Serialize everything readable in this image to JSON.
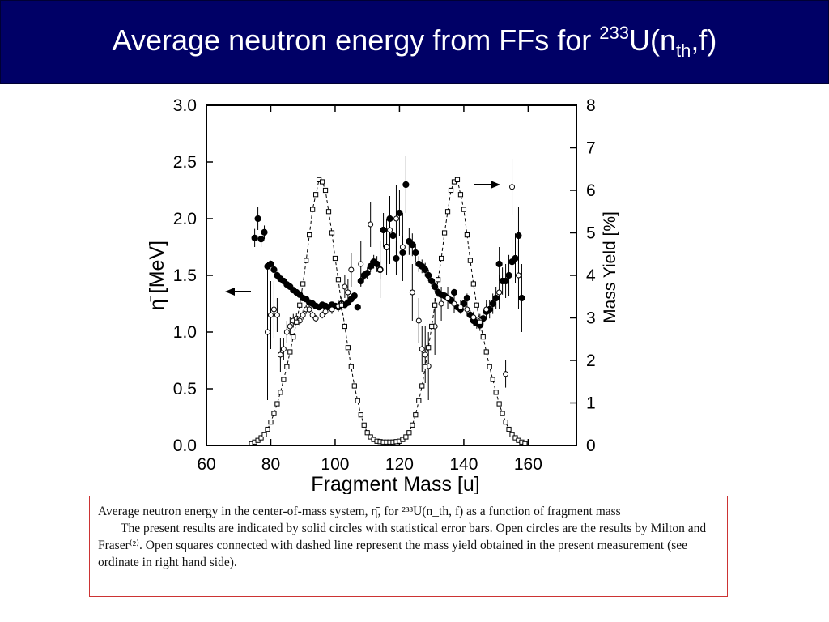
{
  "slide": {
    "title_main": "Average neutron energy from FFs for ",
    "title_sup": "233",
    "title_u": "U(n",
    "title_sub": "th",
    "title_end": ",f)"
  },
  "caption": {
    "line1": "Average neutron energy in the center-of-mass system, η̄, for ²³³U(n_th, f) as a function of fragment mass",
    "line2": "The present results are indicated by solid circles with statistical error bars. Open circles are the results by Milton and Fraser⁽²⁾. Open squares connected with dashed line represent the mass yield obtained in the present measurement (see ordinate in right hand side)."
  },
  "colors": {
    "title_bg": "#000066",
    "title_fg": "#ffffff",
    "caption_border": "#cc3333",
    "ink": "#000000"
  },
  "chart_data": {
    "type": "scatter",
    "xlabel": "Fragment  Mass  [u]",
    "ylabel": "η̄  [MeV]",
    "y2label": "Mass  Yield  [%]",
    "xlim": [
      60,
      175
    ],
    "ylim": [
      0,
      3.0
    ],
    "y2lim": [
      0,
      8
    ],
    "xticks": [
      "60",
      "80",
      "100",
      "120",
      "140",
      "160"
    ],
    "yticks": [
      "0.0",
      "0.5",
      "1.0",
      "1.5",
      "2.0",
      "2.5",
      "3.0"
    ],
    "y2ticks": [
      "0",
      "1",
      "2",
      "3",
      "4",
      "5",
      "6",
      "7",
      "8"
    ],
    "annotations": [
      "left arrow: η̄ uses left axis",
      "right arrow: mass yield uses right axis"
    ],
    "series": [
      {
        "marker": "solid-circle",
        "axis": "left",
        "points": [
          [
            75,
            1.83,
            0.08
          ],
          [
            76,
            2.0,
            0.1
          ],
          [
            77,
            1.82,
            0.07
          ],
          [
            78,
            1.88,
            0.06
          ],
          [
            79,
            1.58,
            0.04
          ],
          [
            80,
            1.6,
            0.03
          ],
          [
            81,
            1.55,
            0.03
          ],
          [
            82,
            1.5,
            0.03
          ],
          [
            83,
            1.47,
            0.03
          ],
          [
            84,
            1.45,
            0.02
          ],
          [
            85,
            1.42,
            0.02
          ],
          [
            86,
            1.4,
            0.02
          ],
          [
            87,
            1.37,
            0.02
          ],
          [
            88,
            1.35,
            0.02
          ],
          [
            89,
            1.33,
            0.02
          ],
          [
            90,
            1.3,
            0.02
          ],
          [
            91,
            1.29,
            0.02
          ],
          [
            92,
            1.26,
            0.02
          ],
          [
            93,
            1.25,
            0.02
          ],
          [
            94,
            1.23,
            0.02
          ],
          [
            95,
            1.22,
            0.02
          ],
          [
            96,
            1.24,
            0.02
          ],
          [
            97,
            1.23,
            0.02
          ],
          [
            98,
            1.22,
            0.02
          ],
          [
            99,
            1.24,
            0.02
          ],
          [
            100,
            1.23,
            0.02
          ],
          [
            101,
            1.22,
            0.02
          ],
          [
            102,
            1.25,
            0.02
          ],
          [
            103,
            1.24,
            0.02
          ],
          [
            104,
            1.26,
            0.02
          ],
          [
            105,
            1.29,
            0.03
          ],
          [
            106,
            1.32,
            0.03
          ],
          [
            107,
            1.22,
            0.03
          ],
          [
            108,
            1.45,
            0.04
          ],
          [
            109,
            1.5,
            0.04
          ],
          [
            110,
            1.52,
            0.05
          ],
          [
            111,
            1.58,
            0.05
          ],
          [
            112,
            1.62,
            0.06
          ],
          [
            113,
            1.6,
            0.07
          ],
          [
            114,
            1.55,
            0.08
          ],
          [
            115,
            1.9,
            0.15
          ],
          [
            116,
            1.75,
            0.15
          ],
          [
            117,
            2.0,
            0.2
          ],
          [
            118,
            1.85,
            0.2
          ],
          [
            119,
            1.65,
            0.15
          ],
          [
            120,
            2.05,
            0.2
          ],
          [
            121,
            1.7,
            0.15
          ],
          [
            122,
            2.3,
            0.25
          ],
          [
            123,
            1.8,
            0.12
          ],
          [
            124,
            1.77,
            0.1
          ],
          [
            125,
            1.7,
            0.08
          ],
          [
            126,
            1.6,
            0.07
          ],
          [
            127,
            1.58,
            0.06
          ],
          [
            128,
            1.55,
            0.06
          ],
          [
            129,
            1.5,
            0.05
          ],
          [
            130,
            1.45,
            0.05
          ],
          [
            131,
            1.4,
            0.04
          ],
          [
            132,
            1.35,
            0.04
          ],
          [
            133,
            1.33,
            0.03
          ],
          [
            134,
            1.32,
            0.03
          ],
          [
            135,
            1.3,
            0.03
          ],
          [
            136,
            1.28,
            0.03
          ],
          [
            137,
            1.35,
            0.03
          ],
          [
            138,
            1.22,
            0.03
          ],
          [
            139,
            1.2,
            0.03
          ],
          [
            140,
            1.25,
            0.03
          ],
          [
            141,
            1.3,
            0.04
          ],
          [
            142,
            1.15,
            0.04
          ],
          [
            143,
            1.1,
            0.04
          ],
          [
            144,
            1.08,
            0.05
          ],
          [
            145,
            1.06,
            0.05
          ],
          [
            146,
            1.12,
            0.06
          ],
          [
            147,
            1.18,
            0.07
          ],
          [
            148,
            1.2,
            0.08
          ],
          [
            149,
            1.25,
            0.09
          ],
          [
            150,
            1.3,
            0.1
          ],
          [
            151,
            1.6,
            0.15
          ],
          [
            152,
            1.45,
            0.12
          ],
          [
            153,
            1.45,
            0.15
          ],
          [
            154,
            1.5,
            0.18
          ],
          [
            155,
            1.62,
            0.2
          ],
          [
            156,
            1.65,
            0.22
          ],
          [
            157,
            1.85,
            0.25
          ],
          [
            158,
            1.3,
            0.3
          ]
        ]
      },
      {
        "marker": "open-circle",
        "axis": "left",
        "points": [
          [
            79,
            1.0,
            0.6
          ],
          [
            80,
            1.15,
            0.3
          ],
          [
            81,
            1.2,
            0.25
          ],
          [
            82,
            1.15,
            0.15
          ],
          [
            83,
            0.8,
            0.15
          ],
          [
            84,
            0.85,
            0.1
          ],
          [
            85,
            1.0,
            0.1
          ],
          [
            86,
            1.05,
            0.08
          ],
          [
            87,
            1.1,
            0.06
          ],
          [
            88,
            1.12,
            0.05
          ],
          [
            89,
            1.1,
            0.04
          ],
          [
            90,
            1.15,
            0.04
          ],
          [
            91,
            1.2,
            0.04
          ],
          [
            92,
            1.2,
            0.03
          ],
          [
            93,
            1.15,
            0.03
          ],
          [
            94,
            1.12,
            0.03
          ],
          [
            96,
            1.15,
            0.03
          ],
          [
            97,
            1.18,
            0.03
          ],
          [
            99,
            1.2,
            0.04
          ],
          [
            101,
            1.23,
            0.05
          ],
          [
            102,
            1.25,
            0.06
          ],
          [
            103,
            1.4,
            0.1
          ],
          [
            104,
            1.35,
            0.12
          ],
          [
            105,
            1.55,
            0.15
          ],
          [
            108,
            1.6,
            0.2
          ],
          [
            111,
            1.95,
            0.2
          ],
          [
            114,
            1.55,
            0.25
          ],
          [
            116,
            1.75,
            0.25
          ],
          [
            117,
            1.9,
            0.3
          ],
          [
            119,
            2.0,
            0.3
          ],
          [
            121,
            1.75,
            0.3
          ],
          [
            124,
            1.35,
            0.25
          ],
          [
            126,
            1.1,
            0.2
          ],
          [
            127,
            0.85,
            0.2
          ],
          [
            128,
            0.8,
            0.25
          ],
          [
            129,
            0.7,
            0.3
          ],
          [
            131,
            1.05,
            0.25
          ],
          [
            133,
            1.25,
            0.15
          ],
          [
            135,
            1.3,
            0.1
          ],
          [
            137,
            1.25,
            0.08
          ],
          [
            139,
            1.22,
            0.06
          ],
          [
            141,
            1.2,
            0.06
          ],
          [
            143,
            1.13,
            0.05
          ],
          [
            145,
            1.1,
            0.06
          ],
          [
            147,
            1.2,
            0.08
          ],
          [
            151,
            1.35,
            0.15
          ],
          [
            153,
            0.63,
            0.12
          ],
          [
            155,
            2.28,
            0.25
          ],
          [
            157,
            1.5,
            0.3
          ]
        ]
      },
      {
        "marker": "open-square",
        "axis": "right",
        "line": "dashed",
        "points": [
          [
            74,
            0.04
          ],
          [
            75,
            0.08
          ],
          [
            76,
            0.12
          ],
          [
            77,
            0.18
          ],
          [
            78,
            0.25
          ],
          [
            79,
            0.38
          ],
          [
            80,
            0.55
          ],
          [
            81,
            0.75
          ],
          [
            82,
            0.98
          ],
          [
            83,
            1.25
          ],
          [
            84,
            1.55
          ],
          [
            85,
            1.85
          ],
          [
            86,
            2.2
          ],
          [
            87,
            2.55
          ],
          [
            88,
            2.9
          ],
          [
            89,
            3.3
          ],
          [
            90,
            3.8
          ],
          [
            91,
            4.35
          ],
          [
            92,
            4.95
          ],
          [
            93,
            5.55
          ],
          [
            94,
            5.9
          ],
          [
            95,
            6.25
          ],
          [
            96,
            6.2
          ],
          [
            97,
            6.0
          ],
          [
            98,
            5.5
          ],
          [
            99,
            5.0
          ],
          [
            100,
            4.4
          ],
          [
            101,
            3.9
          ],
          [
            102,
            3.3
          ],
          [
            103,
            2.8
          ],
          [
            104,
            2.3
          ],
          [
            105,
            1.85
          ],
          [
            106,
            1.4
          ],
          [
            107,
            1.05
          ],
          [
            108,
            0.72
          ],
          [
            109,
            0.48
          ],
          [
            110,
            0.3
          ],
          [
            111,
            0.2
          ],
          [
            112,
            0.14
          ],
          [
            113,
            0.1
          ],
          [
            114,
            0.09
          ],
          [
            115,
            0.08
          ],
          [
            116,
            0.08
          ],
          [
            117,
            0.08
          ],
          [
            118,
            0.08
          ],
          [
            119,
            0.09
          ],
          [
            120,
            0.1
          ],
          [
            121,
            0.14
          ],
          [
            122,
            0.2
          ],
          [
            123,
            0.3
          ],
          [
            124,
            0.48
          ],
          [
            125,
            0.72
          ],
          [
            126,
            1.05
          ],
          [
            127,
            1.4
          ],
          [
            128,
            1.85
          ],
          [
            129,
            2.3
          ],
          [
            130,
            2.8
          ],
          [
            131,
            3.3
          ],
          [
            132,
            3.9
          ],
          [
            133,
            4.4
          ],
          [
            134,
            5.0
          ],
          [
            135,
            5.5
          ],
          [
            136,
            6.0
          ],
          [
            137,
            6.2
          ],
          [
            138,
            6.25
          ],
          [
            139,
            5.9
          ],
          [
            140,
            5.55
          ],
          [
            141,
            4.95
          ],
          [
            142,
            4.35
          ],
          [
            143,
            3.8
          ],
          [
            144,
            3.3
          ],
          [
            145,
            2.9
          ],
          [
            146,
            2.55
          ],
          [
            147,
            2.2
          ],
          [
            148,
            1.85
          ],
          [
            149,
            1.55
          ],
          [
            150,
            1.25
          ],
          [
            151,
            0.98
          ],
          [
            152,
            0.75
          ],
          [
            153,
            0.55
          ],
          [
            154,
            0.38
          ],
          [
            155,
            0.25
          ],
          [
            156,
            0.18
          ],
          [
            157,
            0.12
          ],
          [
            158,
            0.08
          ],
          [
            159,
            0.04
          ]
        ]
      }
    ]
  }
}
